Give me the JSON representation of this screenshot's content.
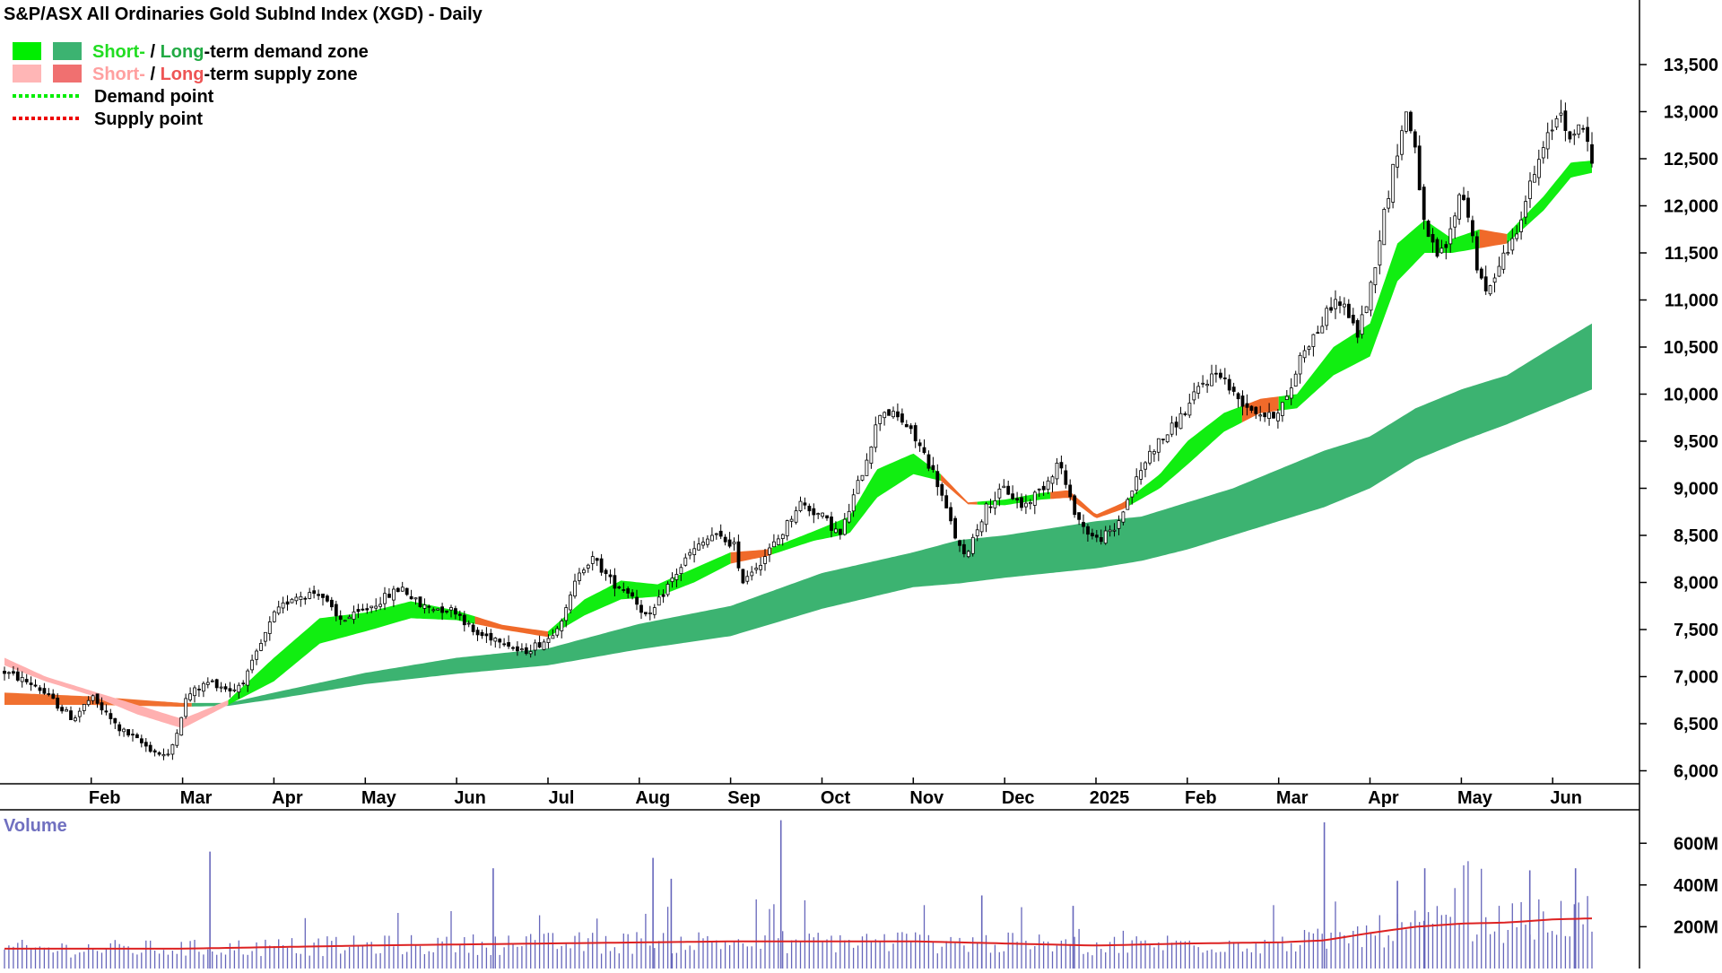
{
  "chart_data": {
    "type": "candlestick",
    "title": "S&P/ASX All Ordinaries Gold SubInd Index (XGD) - Daily",
    "legend": {
      "placement": "top-left",
      "items": [
        {
          "swatches": [
            "#00ee00",
            "#3cb371"
          ],
          "parts": [
            {
              "text": "Short-",
              "color": "#22dd22"
            },
            {
              "text": " / ",
              "color": "#000000"
            },
            {
              "text": "Long",
              "color": "#22aa44"
            },
            {
              "text": "-term demand zone",
              "color": "#000000"
            }
          ]
        },
        {
          "swatches": [
            "#ffb6b6",
            "#f07070"
          ],
          "parts": [
            {
              "text": "Short-",
              "color": "#ffa0a0"
            },
            {
              "text": " / ",
              "color": "#000000"
            },
            {
              "text": "Long",
              "color": "#ee5555"
            },
            {
              "text": "-term supply zone",
              "color": "#000000"
            }
          ]
        },
        {
          "line": "#00ee00",
          "parts": [
            {
              "text": "Demand point",
              "color": "#000000"
            }
          ]
        },
        {
          "line": "#ee0000",
          "parts": [
            {
              "text": "Supply point",
              "color": "#000000"
            }
          ]
        }
      ]
    },
    "x_ticks": [
      "Feb",
      "Mar",
      "Apr",
      "May",
      "Jun",
      "Jul",
      "Aug",
      "Sep",
      "Oct",
      "Nov",
      "Dec",
      "2025",
      "Feb",
      "Mar",
      "Apr",
      "May",
      "Jun"
    ],
    "x_tick_month_index": [
      1,
      2,
      3,
      4,
      5,
      6,
      7,
      8,
      9,
      10,
      11,
      12,
      13,
      14,
      15,
      16,
      17
    ],
    "x_range_month_index": [
      0.05,
      17.43
    ],
    "y_ticks": [
      6000,
      6500,
      7000,
      7500,
      8000,
      8500,
      9000,
      9500,
      10000,
      10500,
      11000,
      11500,
      12000,
      12500,
      13000,
      13500
    ],
    "y_tick_labels": [
      "6,000",
      "6,500",
      "7,000",
      "7,500",
      "8,000",
      "8,500",
      "9,000",
      "9,500",
      "10,000",
      "10,500",
      "11,000",
      "11,500",
      "12,000",
      "12,500",
      "13,000",
      "13,500"
    ],
    "ylim": [
      5900,
      13900
    ],
    "price_path": [
      [
        0.05,
        7050
      ],
      [
        0.4,
        6900
      ],
      [
        0.8,
        6550
      ],
      [
        1.0,
        6780
      ],
      [
        1.3,
        6450
      ],
      [
        1.7,
        6200
      ],
      [
        1.85,
        6150
      ],
      [
        2.05,
        6800
      ],
      [
        2.3,
        6950
      ],
      [
        2.55,
        6850
      ],
      [
        2.7,
        7000
      ],
      [
        3.0,
        7650
      ],
      [
        3.2,
        7850
      ],
      [
        3.5,
        7900
      ],
      [
        3.7,
        7600
      ],
      [
        3.9,
        7650
      ],
      [
        4.15,
        7800
      ],
      [
        4.4,
        7950
      ],
      [
        4.6,
        7750
      ],
      [
        5.0,
        7700
      ],
      [
        5.2,
        7450
      ],
      [
        5.5,
        7400
      ],
      [
        5.7,
        7250
      ],
      [
        6.0,
        7400
      ],
      [
        6.2,
        7700
      ],
      [
        6.35,
        8150
      ],
      [
        6.5,
        8250
      ],
      [
        6.7,
        8000
      ],
      [
        6.9,
        7900
      ],
      [
        7.1,
        7600
      ],
      [
        7.3,
        7950
      ],
      [
        7.55,
        8300
      ],
      [
        7.8,
        8500
      ],
      [
        8.05,
        8400
      ],
      [
        8.1,
        8000
      ],
      [
        8.35,
        8250
      ],
      [
        8.55,
        8500
      ],
      [
        8.75,
        8850
      ],
      [
        9.0,
        8700
      ],
      [
        9.2,
        8500
      ],
      [
        9.45,
        9200
      ],
      [
        9.65,
        9850
      ],
      [
        9.9,
        9700
      ],
      [
        10.1,
        9400
      ],
      [
        10.25,
        9100
      ],
      [
        10.4,
        8650
      ],
      [
        10.55,
        8250
      ],
      [
        10.8,
        8800
      ],
      [
        11.0,
        9000
      ],
      [
        11.2,
        8800
      ],
      [
        11.45,
        9050
      ],
      [
        11.6,
        9300
      ],
      [
        11.7,
        8900
      ],
      [
        11.85,
        8600
      ],
      [
        12.0,
        8450
      ],
      [
        12.2,
        8550
      ],
      [
        12.4,
        9000
      ],
      [
        12.6,
        9400
      ],
      [
        12.8,
        9600
      ],
      [
        13.0,
        9850
      ],
      [
        13.15,
        10100
      ],
      [
        13.35,
        10250
      ],
      [
        13.5,
        10000
      ],
      [
        13.7,
        9850
      ],
      [
        13.9,
        9750
      ],
      [
        14.1,
        9950
      ],
      [
        14.25,
        10450
      ],
      [
        14.45,
        10700
      ],
      [
        14.6,
        11000
      ],
      [
        14.75,
        10900
      ],
      [
        14.85,
        10600
      ],
      [
        15.0,
        11100
      ],
      [
        15.15,
        11900
      ],
      [
        15.3,
        12600
      ],
      [
        15.4,
        13000
      ],
      [
        15.5,
        12600
      ],
      [
        15.6,
        11700
      ],
      [
        15.75,
        11450
      ],
      [
        15.85,
        11600
      ],
      [
        16.0,
        12200
      ],
      [
        16.1,
        11800
      ],
      [
        16.2,
        11200
      ],
      [
        16.3,
        11050
      ],
      [
        16.4,
        11400
      ],
      [
        16.55,
        11600
      ],
      [
        16.75,
        12200
      ],
      [
        16.9,
        12600
      ],
      [
        17.0,
        12850
      ],
      [
        17.1,
        13050
      ],
      [
        17.2,
        12600
      ],
      [
        17.3,
        12950
      ],
      [
        17.43,
        12450
      ]
    ],
    "short_zone": {
      "upper": [
        [
          2.5,
          6750
        ],
        [
          3.0,
          7200
        ],
        [
          3.5,
          7620
        ],
        [
          4.0,
          7680
        ],
        [
          4.5,
          7800
        ],
        [
          5.0,
          7700
        ],
        [
          5.5,
          7550
        ],
        [
          6.0,
          7480
        ],
        [
          6.4,
          7820
        ],
        [
          6.8,
          8020
        ],
        [
          7.2,
          7980
        ],
        [
          7.6,
          8150
        ],
        [
          8.0,
          8320
        ],
        [
          8.4,
          8350
        ],
        [
          8.9,
          8540
        ],
        [
          9.3,
          8700
        ],
        [
          9.6,
          9200
        ],
        [
          10.0,
          9370
        ],
        [
          10.3,
          9150
        ],
        [
          10.6,
          8850
        ],
        [
          11.0,
          8880
        ],
        [
          11.4,
          8950
        ],
        [
          11.7,
          8980
        ],
        [
          12.0,
          8720
        ],
        [
          12.3,
          8850
        ],
        [
          12.7,
          9150
        ],
        [
          13.0,
          9500
        ],
        [
          13.4,
          9800
        ],
        [
          13.8,
          9950
        ],
        [
          14.2,
          10000
        ],
        [
          14.6,
          10500
        ],
        [
          15.0,
          10750
        ],
        [
          15.3,
          11600
        ],
        [
          15.6,
          11850
        ],
        [
          15.9,
          11650
        ],
        [
          16.2,
          11750
        ],
        [
          16.5,
          11700
        ],
        [
          16.9,
          12100
        ],
        [
          17.2,
          12460
        ],
        [
          17.43,
          12480
        ]
      ],
      "lower": [
        [
          2.5,
          6700
        ],
        [
          3.0,
          6950
        ],
        [
          3.5,
          7350
        ],
        [
          4.0,
          7480
        ],
        [
          4.5,
          7620
        ],
        [
          5.0,
          7600
        ],
        [
          5.5,
          7500
        ],
        [
          6.0,
          7420
        ],
        [
          6.4,
          7650
        ],
        [
          6.8,
          7820
        ],
        [
          7.2,
          7850
        ],
        [
          7.6,
          8000
        ],
        [
          8.0,
          8200
        ],
        [
          8.4,
          8280
        ],
        [
          8.9,
          8440
        ],
        [
          9.3,
          8520
        ],
        [
          9.6,
          8900
        ],
        [
          10.0,
          9150
        ],
        [
          10.3,
          9080
        ],
        [
          10.6,
          8830
        ],
        [
          11.0,
          8820
        ],
        [
          11.4,
          8880
        ],
        [
          11.7,
          8900
        ],
        [
          12.0,
          8680
        ],
        [
          12.3,
          8780
        ],
        [
          12.7,
          9000
        ],
        [
          13.0,
          9250
        ],
        [
          13.4,
          9600
        ],
        [
          13.8,
          9800
        ],
        [
          14.2,
          9850
        ],
        [
          14.6,
          10200
        ],
        [
          15.0,
          10400
        ],
        [
          15.3,
          11200
        ],
        [
          15.6,
          11500
        ],
        [
          15.9,
          11500
        ],
        [
          16.2,
          11550
        ],
        [
          16.5,
          11600
        ],
        [
          16.9,
          11950
        ],
        [
          17.2,
          12300
        ],
        [
          17.43,
          12350
        ]
      ]
    },
    "long_zone": {
      "upper": [
        [
          0.05,
          6830
        ],
        [
          1.0,
          6790
        ],
        [
          2.0,
          6720
        ],
        [
          2.5,
          6720
        ],
        [
          3.0,
          6830
        ],
        [
          4.0,
          7040
        ],
        [
          5.0,
          7200
        ],
        [
          6.0,
          7300
        ],
        [
          7.0,
          7560
        ],
        [
          8.0,
          7750
        ],
        [
          9.0,
          8100
        ],
        [
          10.0,
          8320
        ],
        [
          10.5,
          8450
        ],
        [
          11.0,
          8500
        ],
        [
          12.0,
          8650
        ],
        [
          12.5,
          8700
        ],
        [
          13.0,
          8850
        ],
        [
          13.5,
          9000
        ],
        [
          14.0,
          9200
        ],
        [
          14.5,
          9400
        ],
        [
          15.0,
          9550
        ],
        [
          15.5,
          9850
        ],
        [
          16.0,
          10050
        ],
        [
          16.5,
          10200
        ],
        [
          17.0,
          10500
        ],
        [
          17.43,
          10750
        ]
      ],
      "lower": [
        [
          0.05,
          6700
        ],
        [
          1.0,
          6700
        ],
        [
          2.0,
          6680
        ],
        [
          2.5,
          6690
        ],
        [
          3.0,
          6760
        ],
        [
          4.0,
          6920
        ],
        [
          5.0,
          7030
        ],
        [
          6.0,
          7120
        ],
        [
          7.0,
          7290
        ],
        [
          8.0,
          7430
        ],
        [
          9.0,
          7720
        ],
        [
          10.0,
          7950
        ],
        [
          10.5,
          7990
        ],
        [
          11.0,
          8050
        ],
        [
          12.0,
          8150
        ],
        [
          12.5,
          8230
        ],
        [
          13.0,
          8350
        ],
        [
          13.5,
          8500
        ],
        [
          14.0,
          8650
        ],
        [
          14.5,
          8800
        ],
        [
          15.0,
          9000
        ],
        [
          15.5,
          9300
        ],
        [
          16.0,
          9500
        ],
        [
          16.5,
          9680
        ],
        [
          17.0,
          9880
        ],
        [
          17.43,
          10050
        ]
      ]
    },
    "short_zone_supply_segments": [
      [
        0.05,
        2.5
      ],
      [
        5.2,
        6.0
      ],
      [
        8.0,
        8.45
      ],
      [
        10.3,
        10.7
      ],
      [
        11.5,
        12.35
      ],
      [
        13.6,
        14.0
      ],
      [
        16.2,
        16.5
      ]
    ],
    "long_zone_supply_segments": [
      [
        0.05,
        2.1
      ]
    ],
    "volume": {
      "title": "Volume",
      "y_ticks": [
        200,
        400,
        600
      ],
      "y_tick_labels": [
        "200M",
        "400M",
        "600M"
      ],
      "ylim": [
        0,
        760
      ],
      "spikes": [
        [
          2.3,
          560
        ],
        [
          5.4,
          480
        ],
        [
          7.15,
          530
        ],
        [
          7.35,
          430
        ],
        [
          8.55,
          710
        ],
        [
          10.75,
          350
        ],
        [
          11.75,
          300
        ],
        [
          14.5,
          700
        ],
        [
          15.3,
          420
        ],
        [
          15.6,
          480
        ],
        [
          16.75,
          470
        ],
        [
          17.25,
          480
        ]
      ],
      "ma": [
        [
          0.05,
          95
        ],
        [
          2.0,
          95
        ],
        [
          4.0,
          110
        ],
        [
          6.0,
          120
        ],
        [
          8.0,
          130
        ],
        [
          10.0,
          130
        ],
        [
          11.0,
          120
        ],
        [
          12.0,
          110
        ],
        [
          13.0,
          120
        ],
        [
          14.0,
          125
        ],
        [
          14.5,
          135
        ],
        [
          15.0,
          170
        ],
        [
          15.5,
          200
        ],
        [
          16.0,
          215
        ],
        [
          16.5,
          220
        ],
        [
          17.0,
          235
        ],
        [
          17.43,
          240
        ]
      ]
    }
  }
}
